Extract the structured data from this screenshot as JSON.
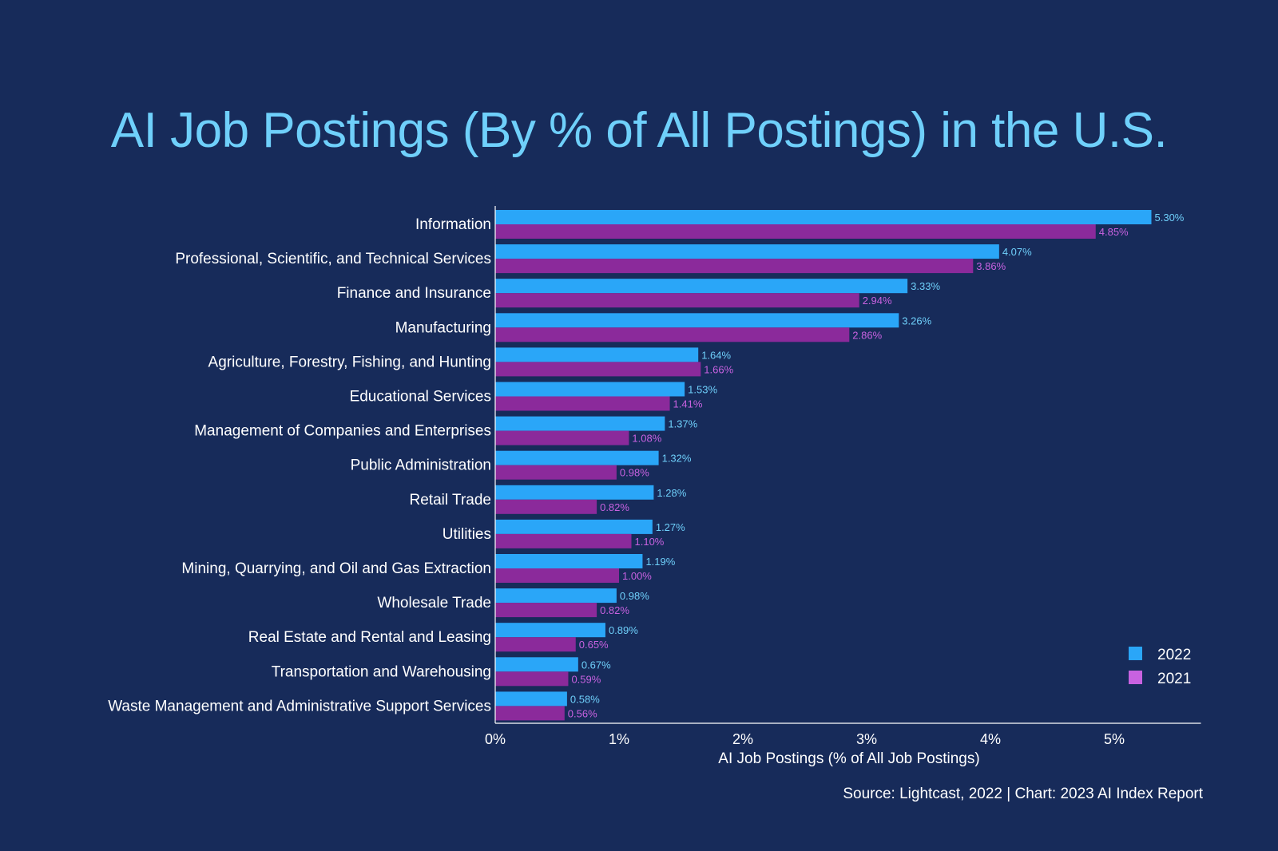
{
  "title": "AI Job Postings (By % of All Postings) in the U.S.",
  "source": "Source: Lightcast, 2022 | Chart: 2023 AI Index Report",
  "chart_data": {
    "type": "bar",
    "orientation": "horizontal",
    "title": "AI Job Postings (By % of All Postings) in the U.S.",
    "xlabel": "AI Job Postings (% of All Job Postings)",
    "ylabel": "",
    "xlim": [
      0,
      5.7
    ],
    "x_ticks": [
      0,
      1,
      2,
      3,
      4,
      5
    ],
    "x_tick_labels": [
      "0%",
      "1%",
      "2%",
      "3%",
      "4%",
      "5%"
    ],
    "grid": false,
    "legend_position": "bottom-right",
    "categories": [
      "Information",
      "Professional, Scientific, and Technical Services",
      "Finance and Insurance",
      "Manufacturing",
      "Agriculture, Forestry, Fishing, and Hunting",
      "Educational Services",
      "Management of Companies and Enterprises",
      "Public Administration",
      "Retail Trade",
      "Utilities",
      "Mining, Quarrying, and Oil and Gas Extraction",
      "Wholesale Trade",
      "Real Estate and Rental and Leasing",
      "Transportation and Warehousing",
      "Waste Management and Administrative Support Services"
    ],
    "series": [
      {
        "name": "2022",
        "color": "#2aa6f8",
        "label_color": "#6fd0fb",
        "values": [
          5.3,
          4.07,
          3.33,
          3.26,
          1.64,
          1.53,
          1.37,
          1.32,
          1.28,
          1.27,
          1.19,
          0.98,
          0.89,
          0.67,
          0.58
        ],
        "labels": [
          "5.30%",
          "4.07%",
          "3.33%",
          "3.26%",
          "1.64%",
          "1.53%",
          "1.37%",
          "1.32%",
          "1.28%",
          "1.27%",
          "1.19%",
          "0.98%",
          "0.89%",
          "0.67%",
          "0.58%"
        ]
      },
      {
        "name": "2021",
        "color": "#8b2a9b",
        "label_color": "#c862e0",
        "values": [
          4.85,
          3.86,
          2.94,
          2.86,
          1.66,
          1.41,
          1.08,
          0.98,
          0.82,
          1.1,
          1.0,
          0.82,
          0.65,
          0.59,
          0.56
        ],
        "labels": [
          "4.85%",
          "3.86%",
          "2.94%",
          "2.86%",
          "1.66%",
          "1.41%",
          "1.08%",
          "0.98%",
          "0.82%",
          "1.10%",
          "1.00%",
          "0.82%",
          "0.65%",
          "0.59%",
          "0.56%"
        ]
      }
    ],
    "legend": [
      {
        "name": "2022",
        "color": "#2aa6f8"
      },
      {
        "name": "2021",
        "color": "#c862e0"
      }
    ]
  }
}
